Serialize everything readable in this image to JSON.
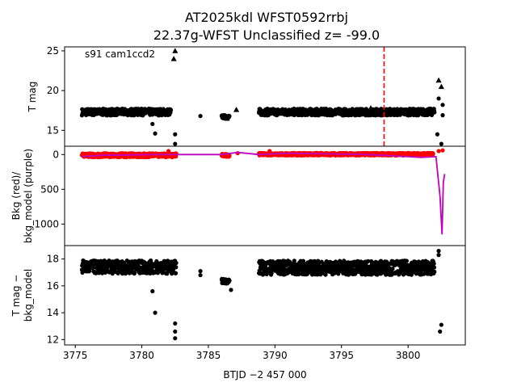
{
  "chart_data": [
    {
      "type": "scatter",
      "title_line1": "AT2025kdl  WFST0592rrbj",
      "title_line2": "22.37g-WFST Unclassified z= -99.0",
      "annotation": "s91 cam1ccd2",
      "ylabel": "T mag",
      "ylim": [
        25.5,
        13.0
      ],
      "yticks": [
        "15",
        "20",
        "25"
      ],
      "ytick_values": [
        15,
        20,
        25
      ],
      "xlim": [
        3774.2,
        3804.3
      ],
      "vline_x": 3798.2,
      "vline_color": "#ff0000",
      "series": [
        {
          "marker": "circle",
          "color": "#000000",
          "segments": [
            [
              3775.5,
              3782.2,
              16.7,
              17.9
            ],
            [
              3786.0,
              3786.6,
              16.4,
              17.0
            ],
            [
              3788.8,
              3802.0,
              16.7,
              17.9
            ]
          ],
          "points": [
            [
              3780.8,
              15.8
            ],
            [
              3781.0,
              14.6
            ],
            [
              3782.5,
              14.5
            ],
            [
              3782.5,
              13.3
            ],
            [
              3784.4,
              16.8
            ],
            [
              3802.2,
              14.5
            ],
            [
              3802.5,
              13.3
            ],
            [
              3802.6,
              16.9
            ],
            [
              3802.3,
              19.0
            ],
            [
              3802.6,
              18.2
            ]
          ]
        },
        {
          "marker": "triangle",
          "color": "#000000",
          "points": [
            [
              3782.4,
              24.0
            ],
            [
              3782.5,
              25.0
            ],
            [
              3786.4,
              16.5
            ],
            [
              3787.1,
              17.6
            ],
            [
              3789.6,
              17.2
            ],
            [
              3797.2,
              17.8
            ],
            [
              3800.4,
              17.4
            ],
            [
              3802.3,
              21.3
            ],
            [
              3802.5,
              20.5
            ]
          ]
        }
      ]
    },
    {
      "type": "line",
      "ylabel": "Bkg (red)/\nbkg_model (purple)",
      "ylim": [
        -120,
        1310
      ],
      "yticks": [
        "0",
        "500",
        "1000"
      ],
      "ytick_values": [
        0,
        500,
        1000
      ],
      "series": [
        {
          "name": "Bkg",
          "color": "#ff0000",
          "marker": "circle",
          "segments": [
            [
              3775.5,
              3782.6,
              -30,
              50
            ],
            [
              3786.0,
              3786.6,
              -20,
              40
            ],
            [
              3788.8,
              3801.9,
              -30,
              20
            ]
          ],
          "points": [
            [
              3782.0,
              -50
            ],
            [
              3787.2,
              -20
            ],
            [
              3789.6,
              -50
            ],
            [
              3802.3,
              -50
            ],
            [
              3802.6,
              -60
            ]
          ]
        },
        {
          "name": "bkg_model",
          "color": "#bf00bf",
          "x": [
            3775.5,
            3777.0,
            3779.0,
            3781.0,
            3782.6,
            3786.0,
            3787.2,
            3788.8,
            3791.0,
            3794.0,
            3797.0,
            3799.0,
            3801.0,
            3802.1,
            3802.4,
            3802.55,
            3802.65,
            3802.75
          ],
          "y": [
            30,
            10,
            5,
            0,
            0,
            0,
            -30,
            0,
            -20,
            -10,
            0,
            20,
            40,
            30,
            600,
            1150,
            400,
            280
          ]
        }
      ]
    },
    {
      "type": "scatter",
      "ylabel": "T mag −\nbkg_model",
      "ylim": [
        19.0,
        11.6
      ],
      "yticks": [
        "12",
        "14",
        "16",
        "18"
      ],
      "ytick_values": [
        12,
        14,
        16,
        18
      ],
      "xlabel": "BTJD −2 457 000",
      "xticks": [
        "3775",
        "3780",
        "3785",
        "3790",
        "3795",
        "3800"
      ],
      "xtick_values": [
        3775,
        3780,
        3785,
        3790,
        3795,
        3800
      ],
      "series": [
        {
          "marker": "circle",
          "color": "#000000",
          "segments": [
            [
              3775.5,
              3782.6,
              16.7,
              18.1
            ],
            [
              3786.0,
              3786.6,
              16.1,
              16.6
            ],
            [
              3788.8,
              3802.0,
              16.6,
              18.1
            ]
          ],
          "points": [
            [
              3780.8,
              15.6
            ],
            [
              3781.0,
              14.0
            ],
            [
              3782.5,
              12.1
            ],
            [
              3782.5,
              12.6
            ],
            [
              3782.5,
              13.2
            ],
            [
              3784.4,
              16.8
            ],
            [
              3784.4,
              17.1
            ],
            [
              3786.7,
              15.7
            ],
            [
              3802.4,
              12.6
            ],
            [
              3802.5,
              13.1
            ],
            [
              3802.3,
              18.3
            ],
            [
              3802.3,
              18.6
            ]
          ]
        }
      ]
    }
  ]
}
